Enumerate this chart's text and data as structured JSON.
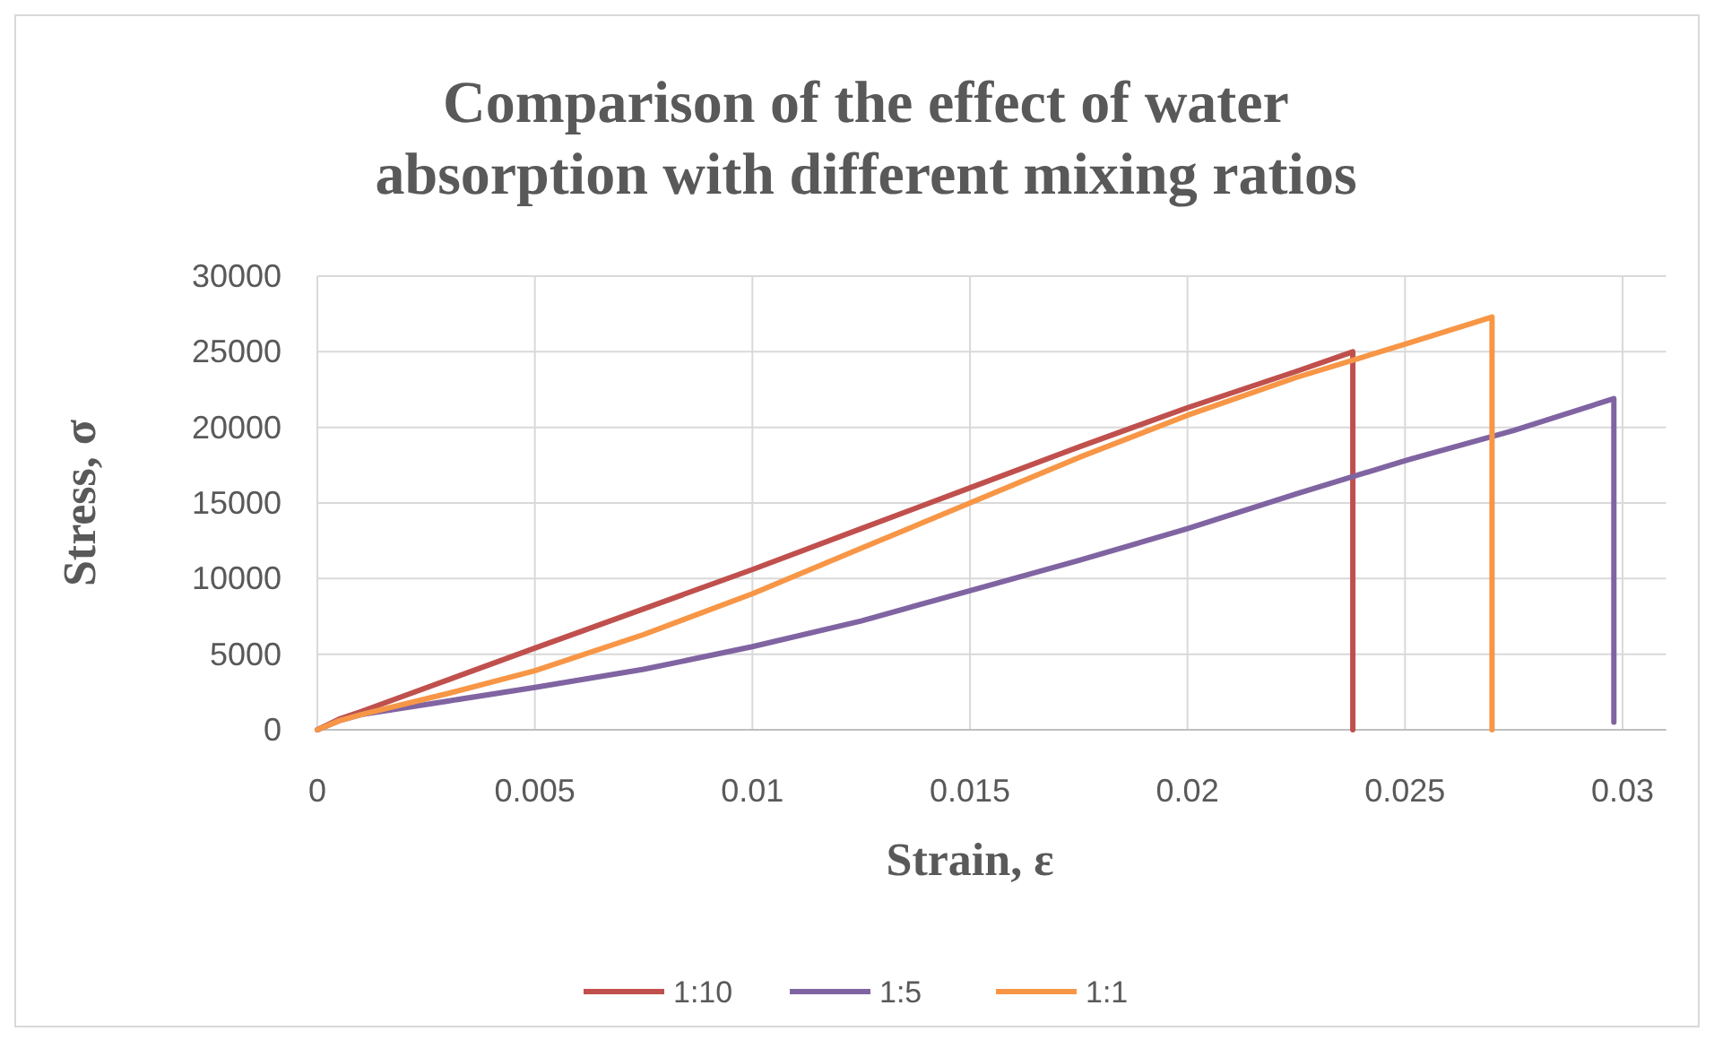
{
  "chart_data": {
    "type": "line",
    "title": "Comparison of the effect of water absorption with different mixing ratios",
    "xlabel": "Strain, ε",
    "ylabel": "Stress, σ",
    "xlim": [
      0,
      0.031
    ],
    "xticks": [
      0,
      0.005,
      0.01,
      0.015,
      0.02,
      0.025,
      0.03
    ],
    "ylim": [
      0,
      30000
    ],
    "yticks": [
      0,
      5000,
      10000,
      15000,
      20000,
      25000,
      30000
    ],
    "grid": true,
    "legend": "bottom",
    "marker": "none",
    "line_style": "solid",
    "series": [
      {
        "name": "1:10",
        "color": "#c0504d",
        "x": [
          0,
          0.0005,
          0.001,
          0.003,
          0.005,
          0.0075,
          0.01,
          0.0125,
          0.015,
          0.0175,
          0.02,
          0.0225,
          0.0238,
          0.0238
        ],
        "values": [
          0,
          700,
          1200,
          3300,
          5400,
          8000,
          10600,
          13300,
          16000,
          18700,
          21300,
          23700,
          25000,
          0
        ]
      },
      {
        "name": "1:5",
        "color": "#8064a2",
        "x": [
          0,
          0.0005,
          0.001,
          0.003,
          0.005,
          0.0075,
          0.01,
          0.0125,
          0.015,
          0.0175,
          0.02,
          0.0225,
          0.025,
          0.0275,
          0.0298,
          0.0298
        ],
        "values": [
          0,
          600,
          1000,
          1900,
          2800,
          4000,
          5500,
          7200,
          9200,
          11200,
          13300,
          15600,
          17800,
          19800,
          21900,
          500
        ]
      },
      {
        "name": "1:1",
        "color": "#f79646",
        "x": [
          0,
          0.0005,
          0.001,
          0.003,
          0.005,
          0.0075,
          0.01,
          0.0125,
          0.015,
          0.0175,
          0.02,
          0.0225,
          0.025,
          0.027,
          0.027
        ],
        "values": [
          0,
          600,
          1000,
          2400,
          3900,
          6300,
          9000,
          12000,
          15000,
          18000,
          20800,
          23300,
          25500,
          27300,
          0
        ]
      }
    ]
  }
}
